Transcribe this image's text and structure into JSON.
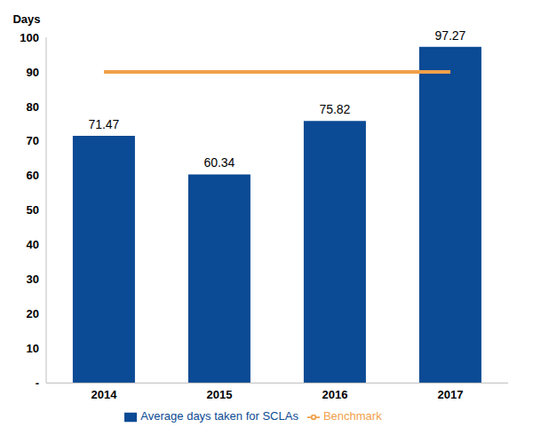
{
  "chart_data": {
    "type": "bar",
    "y_label": "Days",
    "categories": [
      "2014",
      "2015",
      "2016",
      "2017"
    ],
    "series": [
      {
        "name": "Average days taken for SCLAs",
        "type": "bar",
        "color": "#0b4a94",
        "values": [
          71.47,
          60.34,
          75.82,
          97.27
        ],
        "data_labels": true
      },
      {
        "name": "Benchmark",
        "type": "line",
        "color": "#f0a04b",
        "values": [
          90,
          90,
          90,
          90
        ]
      }
    ],
    "ylim": [
      0,
      100
    ],
    "yticks": [
      {
        "value": 0,
        "label": "-"
      },
      10,
      20,
      30,
      40,
      50,
      60,
      70,
      80,
      90,
      100
    ],
    "grid": false,
    "legend": "bottom"
  }
}
